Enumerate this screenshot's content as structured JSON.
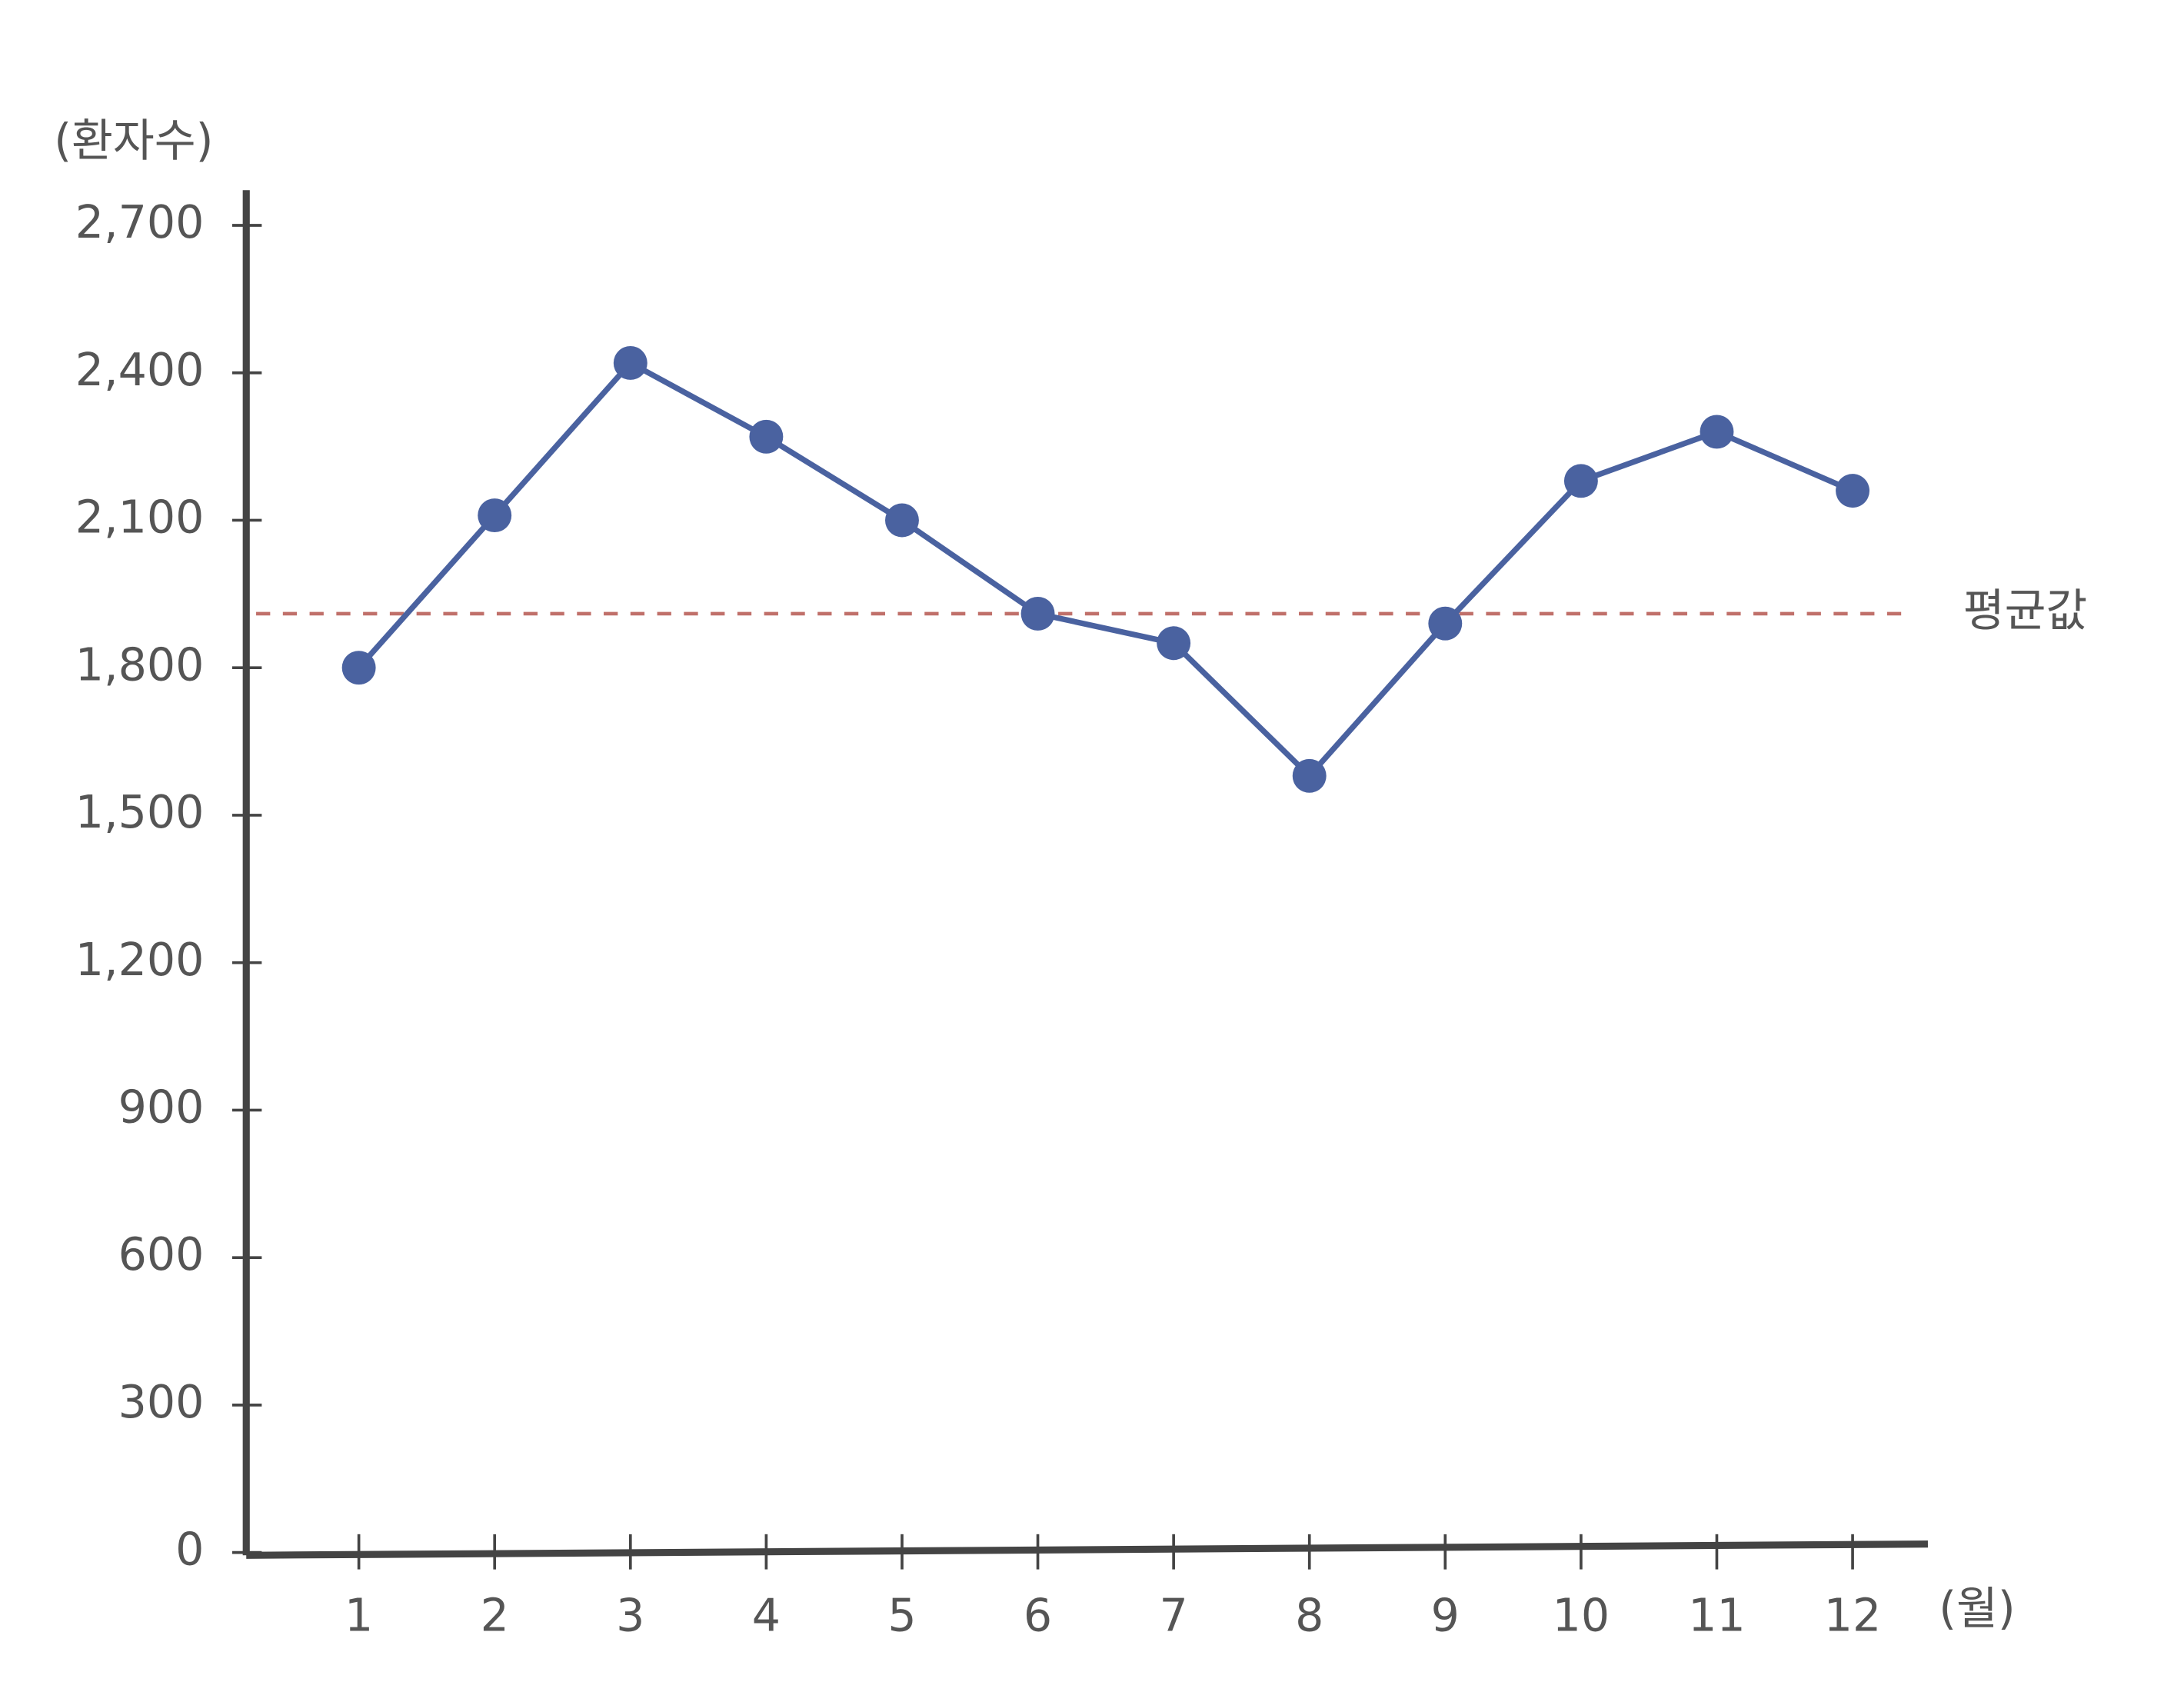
{
  "chart_data": {
    "type": "line",
    "y_label": "(환자수)",
    "x_label": "(월)",
    "categories": [
      "1",
      "2",
      "3",
      "4",
      "5",
      "6",
      "7",
      "8",
      "9",
      "10",
      "11",
      "12"
    ],
    "series": [
      {
        "name": "환자수",
        "color": "#4a62a0",
        "values": [
          1800,
          2110,
          2420,
          2270,
          2100,
          1910,
          1850,
          1580,
          1890,
          2180,
          2280,
          2160
        ]
      }
    ],
    "reference_line": {
      "value": 1910,
      "label": "평균값",
      "color": "#c0706a"
    },
    "ylim": [
      0,
      2700
    ],
    "yticks": [
      0,
      300,
      600,
      900,
      {
        "value": 1200,
        "label": "1,200"
      },
      {
        "value": 1500,
        "label": "1,500"
      },
      {
        "value": 1800,
        "label": "1,800"
      },
      {
        "value": 2100,
        "label": "2,100"
      },
      {
        "value": 2400,
        "label": "2,400"
      },
      {
        "value": 2700,
        "label": "2,700"
      }
    ],
    "grid": false
  }
}
